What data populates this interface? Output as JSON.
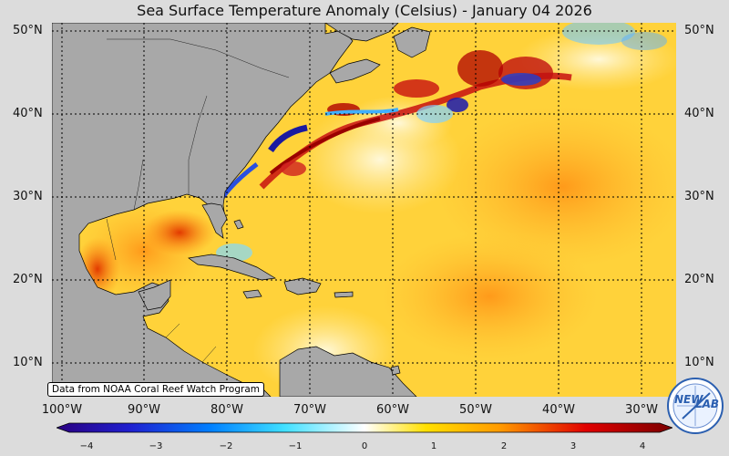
{
  "title": "Sea Surface Temperature Anomaly (Celsius) - January 04 2026",
  "credit": "Data from NOAA Coral Reef Watch Program",
  "lat_labels": {
    "n50": "50°N",
    "n40": "40°N",
    "n30": "30°N",
    "n20": "20°N",
    "n10": "10°N"
  },
  "lon_labels": {
    "w100": "100°W",
    "w90": "90°W",
    "w80": "80°W",
    "w70": "70°W",
    "w60": "60°W",
    "w50": "50°W",
    "w40": "40°W",
    "w30": "30°W"
  },
  "colorbar": {
    "min": -4,
    "max": 4,
    "ticks": {
      "m4": "−4",
      "m3": "−3",
      "m2": "−2",
      "m1": "−1",
      "z0": "0",
      "p1": "1",
      "p2": "2",
      "p3": "3",
      "p4": "4"
    },
    "colors": [
      "#2a0080",
      "#0040ff",
      "#00b4ff",
      "#ffffff",
      "#ffe000",
      "#ff8c00",
      "#e00000",
      "#7a0000"
    ]
  },
  "logo": {
    "text_top": "NEW",
    "text_bottom": "LAB"
  },
  "colors": {
    "land": "#a8a8a8",
    "ocean_base": "#ffd23a",
    "background": "#dcdcdc"
  }
}
